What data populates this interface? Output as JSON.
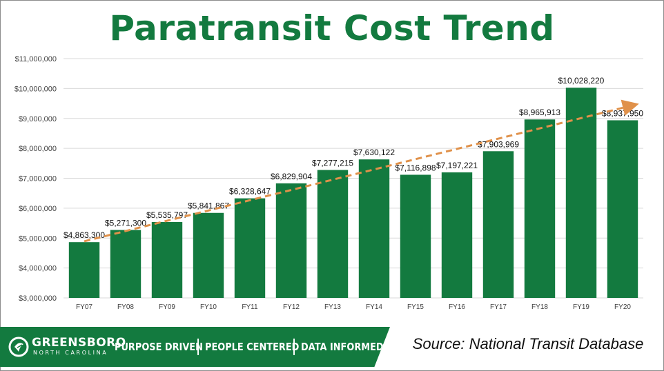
{
  "title": "Paratransit Cost Trend",
  "source": "Source: National Transit Database",
  "branding": {
    "city": "GREENSBORO",
    "state": "NORTH CAROLINA",
    "tag1": "PURPOSE DRIVEN",
    "tag2": "PEOPLE CENTERED",
    "tag3": "DATA INFORMED",
    "logo_icon": "greensboro-leaf-logo"
  },
  "colors": {
    "bar": "#137a3f",
    "trend": "#e0914a",
    "title": "#137a3f",
    "footer": "#137a3f"
  },
  "chart_data": {
    "type": "bar",
    "title": "Paratransit Cost Trend",
    "xlabel": "",
    "ylabel": "",
    "categories": [
      "FY07",
      "FY08",
      "FY09",
      "FY10",
      "FY11",
      "FY12",
      "FY13",
      "FY14",
      "FY15",
      "FY16",
      "FY17",
      "FY18",
      "FY19",
      "FY20"
    ],
    "values": [
      4863300,
      5271300,
      5535797,
      5841867,
      6328647,
      6829904,
      7277215,
      7630122,
      7116898,
      7197221,
      7903969,
      8965913,
      10028220,
      8937950
    ],
    "data_labels": [
      "$4,863,300",
      "$5,271,300",
      "$5,535,797",
      "$5,841,867",
      "$6,328,647",
      "$6,829,904",
      "$7,277,215",
      "$7,630,122",
      "$7,116,898",
      "$7,197,221",
      "$7,903,969",
      "$8,965,913",
      "$10,028,220",
      "$8,937,950"
    ],
    "ylim": [
      3000000,
      11000000
    ],
    "yticks": [
      3000000,
      4000000,
      5000000,
      6000000,
      7000000,
      8000000,
      9000000,
      10000000,
      11000000
    ],
    "ytick_labels": [
      "$3,000,000",
      "$4,000,000",
      "$5,000,000",
      "$6,000,000",
      "$7,000,000",
      "$8,000,000",
      "$9,000,000",
      "$10,000,000",
      "$11,000,000"
    ],
    "grid": true,
    "trendline": {
      "type": "linear",
      "style": "dashed-arrow"
    }
  }
}
